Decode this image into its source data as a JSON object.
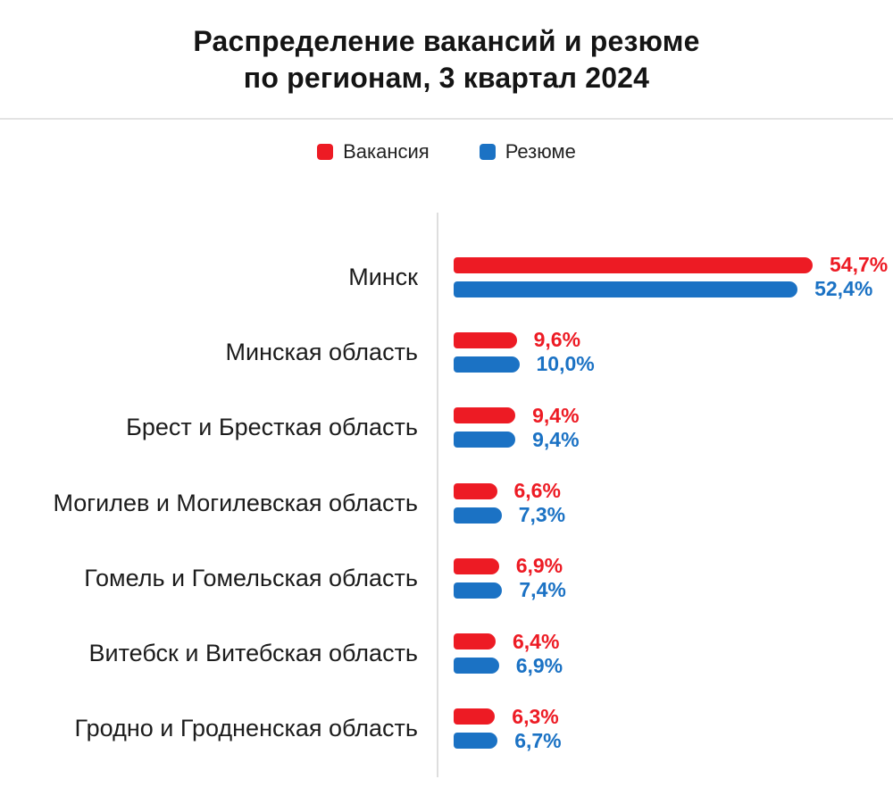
{
  "title": {
    "line1": "Распределение вакансий и резюме",
    "line2": "по регионам, 3 квартал 2024"
  },
  "legend": [
    {
      "label": "Вакансия",
      "color": "#ed1b24"
    },
    {
      "label": "Резюме",
      "color": "#1b72c4"
    }
  ],
  "chart_data": {
    "type": "bar",
    "orientation": "horizontal",
    "title": "Распределение вакансий и резюме по регионам, 3 квартал 2024",
    "categories": [
      "Минск",
      "Минская область",
      "Брест и Бресткая область",
      "Могилев и Могилевская область",
      "Гомель и Гомельская область",
      "Витебск и Витебская область",
      "Гродно и Гродненская область"
    ],
    "series": [
      {
        "name": "Вакансия",
        "color": "#ed1b24",
        "values": [
          54.7,
          9.6,
          9.4,
          6.6,
          6.9,
          6.4,
          6.3
        ],
        "display": [
          "54,7%",
          "9,6%",
          "9,4%",
          "6,6%",
          "6,9%",
          "6,4%",
          "6,3%"
        ]
      },
      {
        "name": "Резюме",
        "color": "#1b72c4",
        "values": [
          52.4,
          10.0,
          9.4,
          7.3,
          7.4,
          6.9,
          6.7
        ],
        "display": [
          "52,4%",
          "10,0%",
          "9,4%",
          "7,3%",
          "7,4%",
          "6,9%",
          "6,7%"
        ]
      }
    ],
    "value_unit": "%",
    "xlim": [
      0,
      56
    ],
    "grid": false,
    "legend_position": "top-center",
    "background": "#ffffff"
  }
}
